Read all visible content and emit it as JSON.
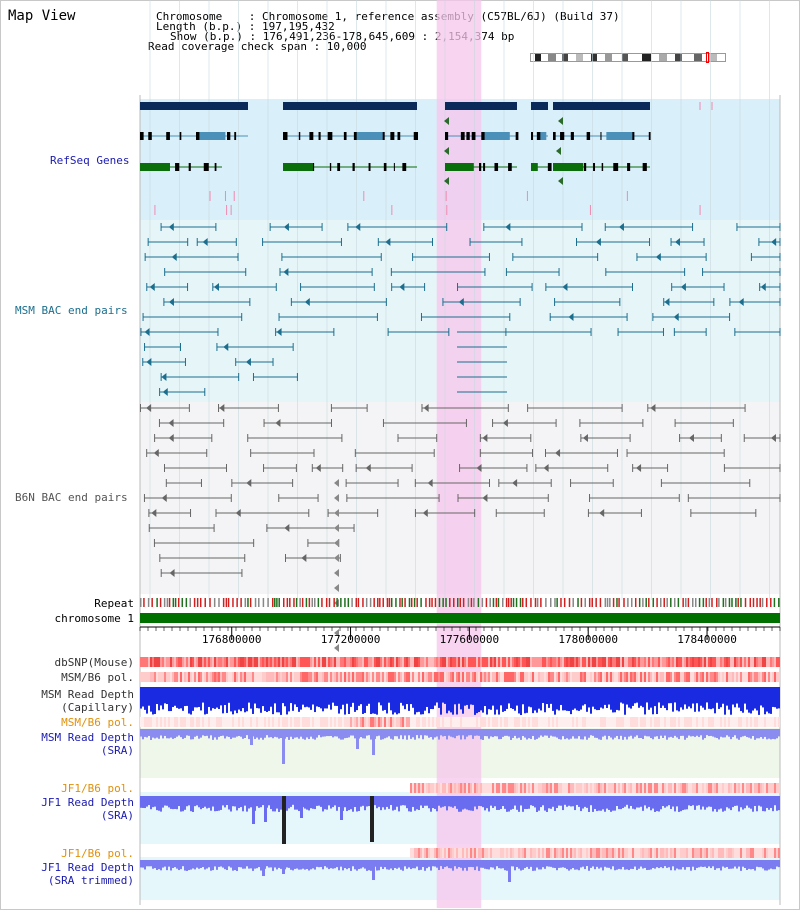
{
  "title": "Map View",
  "header": {
    "chromosome_line": "Chromosome    : Chromosome 1, reference assembly (C57BL/6J) (Build 37)",
    "length_line": "Length (b.p.) : 197,195,432",
    "show_line": "Show (b.p.) : 176,491,236-178,645,609 : 2,154,374 bp",
    "coverage_line": "Read coverage check span : 10,000"
  },
  "ideogram": {
    "bands": [
      {
        "start": 0.02,
        "end": 0.05,
        "color": "#222"
      },
      {
        "start": 0.09,
        "end": 0.13,
        "color": "#888"
      },
      {
        "start": 0.16,
        "end": 0.19,
        "color": "#444"
      },
      {
        "start": 0.23,
        "end": 0.27,
        "color": "#bbb"
      },
      {
        "start": 0.31,
        "end": 0.34,
        "color": "#333"
      },
      {
        "start": 0.38,
        "end": 0.42,
        "color": "#999"
      },
      {
        "start": 0.47,
        "end": 0.5,
        "color": "#555"
      },
      {
        "start": 0.57,
        "end": 0.62,
        "color": "#222"
      },
      {
        "start": 0.66,
        "end": 0.7,
        "color": "#aaa"
      },
      {
        "start": 0.74,
        "end": 0.78,
        "color": "#444"
      },
      {
        "start": 0.84,
        "end": 0.88,
        "color": "#666"
      },
      {
        "start": 0.92,
        "end": 0.96,
        "color": "#bbb"
      }
    ],
    "marker_fraction": 0.9
  },
  "tracks": {
    "refseq": "RefSeq Genes",
    "msm_bac": "MSM BAC end pairs",
    "b6n_bac": "B6N BAC end pairs",
    "repeat": "Repeat",
    "chromosome": "chromosome 1",
    "dbsnp": "dbSNP(Mouse)",
    "msm_b6_pol_top": "MSM/B6 pol.",
    "msm_read_depth_cap": [
      "MSM Read Depth",
      "(Capillary)"
    ],
    "msm_b6_pol": "MSM/B6 pol.",
    "msm_read_depth_sra": [
      "MSM Read Depth",
      "(SRA)"
    ],
    "jf1_b6_pol_1": "JF1/B6 pol.",
    "jf1_read_depth_sra": [
      "JF1 Read Depth",
      "(SRA)"
    ],
    "jf1_b6_pol_2": "JF1/B6 pol.",
    "jf1_read_depth_trim": [
      "JF1 Read Depth",
      "(SRA trimmed)"
    ]
  },
  "axis": {
    "start": 176491236,
    "end": 178645609,
    "ticks": [
      {
        "value": 176800000,
        "label": "176800000"
      },
      {
        "value": 177200000,
        "label": "177200000"
      },
      {
        "value": 177600000,
        "label": "177600000"
      },
      {
        "value": 178000000,
        "label": "178000000"
      },
      {
        "value": 178400000,
        "label": "178400000"
      }
    ]
  },
  "highlight": {
    "start": 177490000,
    "end": 177640000
  },
  "colors": {
    "refseq_bg": "#d9effa",
    "msm_bg": "#e6f6f8",
    "b6n_bg": "#f4f4f6",
    "gene_dark": "#0b2a5a",
    "gene_mid": "#4a90b8",
    "gene_green": "#0a6e0a",
    "highlight": "#f5c6ec",
    "label_blue": "#1b1bb0",
    "label_teal": "#1c6e8e",
    "label_gray": "#555555",
    "label_orange": "#e0900a",
    "chromosome_bar": "#007000"
  }
}
